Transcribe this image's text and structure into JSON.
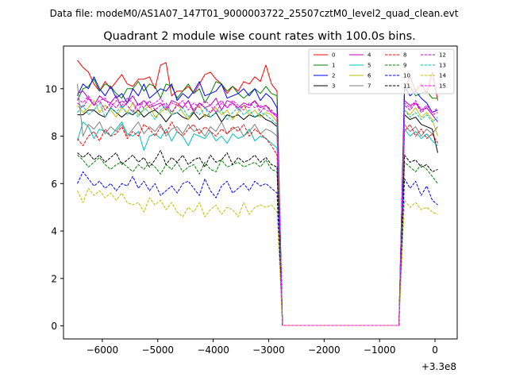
{
  "chart_data": {
    "type": "line",
    "suptitle": "Data file: modeM0/AS1A07_147T01_9000003722_25507cztM0_level2_quad_clean.evt",
    "title": "Quadrant 2 module wise count rates with 100.0s bins.",
    "xlabel": "",
    "ylabel": "",
    "x_offset_label": "+3.3e8",
    "xlim": [
      -6700,
      400
    ],
    "ylim": [
      -0.55,
      11.8
    ],
    "xticks": [
      -6000,
      -5000,
      -4000,
      -3000,
      -2000,
      -1000,
      0
    ],
    "xtick_labels": [
      "−6000",
      "−5000",
      "−4000",
      "−3000",
      "−2000",
      "−1000",
      "0"
    ],
    "yticks": [
      0,
      2,
      4,
      6,
      8,
      10
    ],
    "ytick_labels": [
      "0",
      "2",
      "4",
      "6",
      "8",
      "10"
    ],
    "legend_position": "upper right",
    "legend_ncol": 4,
    "x": [
      -6450,
      -6350,
      -6250,
      -6150,
      -6050,
      -5950,
      -5850,
      -5750,
      -5650,
      -5550,
      -5450,
      -5350,
      -5250,
      -5150,
      -5050,
      -4950,
      -4850,
      -4750,
      -4650,
      -4550,
      -4450,
      -4350,
      -4250,
      -4150,
      -4050,
      -3950,
      -3850,
      -3750,
      -3650,
      -3550,
      -3450,
      -3350,
      -3250,
      -3150,
      -3050,
      -2950,
      -2850,
      -2750,
      -2650,
      -2550,
      -2450,
      -2350,
      -2250,
      -2150,
      -2050,
      -1950,
      -1850,
      -1750,
      -1650,
      -1550,
      -1450,
      -1350,
      -1250,
      -1150,
      -1050,
      -950,
      -850,
      -750,
      -650,
      -550,
      -450,
      -350,
      -250,
      -150,
      -50,
      50
    ],
    "series": [
      {
        "name": "0",
        "color": "#ff0000",
        "dash": "solid",
        "values": [
          11.2,
          10.9,
          10.7,
          10.2,
          9.9,
          10.3,
          10.0,
          10.3,
          10.6,
          10.2,
          10.1,
          10.4,
          10.4,
          10.5,
          10.0,
          11.0,
          11.1,
          9.7,
          9.9,
          9.9,
          10.1,
          9.8,
          10.2,
          10.6,
          10.7,
          10.4,
          10.2,
          9.8,
          10.1,
          9.9,
          10.3,
          10.2,
          10.5,
          10.3,
          11.0,
          10.2,
          9.9,
          0.02,
          0.02,
          0.02,
          0.02,
          0.02,
          0.02,
          0.02,
          0.02,
          0.02,
          0.02,
          0.02,
          0.02,
          0.02,
          0.02,
          0.02,
          0.02,
          0.02,
          0.02,
          0.02,
          0.02,
          0.02,
          0.02,
          10.0,
          10.5,
          9.9,
          10.2,
          9.8,
          10.7,
          9.5
        ]
      },
      {
        "name": "1",
        "color": "#008000",
        "dash": "solid",
        "values": [
          9.5,
          10.0,
          10.1,
          10.4,
          9.9,
          10.2,
          10.1,
          9.8,
          9.6,
          10.0,
          10.0,
          10.3,
          9.9,
          10.2,
          10.1,
          9.6,
          10.2,
          10.1,
          9.6,
          9.9,
          10.2,
          9.8,
          10.0,
          9.4,
          9.8,
          10.3,
          10.2,
          9.9,
          10.1,
          9.8,
          9.6,
          9.8,
          10.0,
          9.8,
          10.1,
          9.8,
          9.7,
          0.02,
          0.02,
          0.02,
          0.02,
          0.02,
          0.02,
          0.02,
          0.02,
          0.02,
          0.02,
          0.02,
          0.02,
          0.02,
          0.02,
          0.02,
          0.02,
          0.02,
          0.02,
          0.02,
          0.02,
          0.02,
          0.02,
          9.9,
          10.1,
          9.7,
          9.8,
          9.9,
          9.6,
          9.6
        ]
      },
      {
        "name": "2",
        "color": "#0000ff",
        "dash": "solid",
        "values": [
          9.7,
          10.2,
          10.0,
          10.5,
          10.0,
          9.7,
          10.1,
          9.6,
          9.8,
          9.4,
          10.0,
          9.7,
          10.2,
          9.6,
          9.8,
          10.0,
          9.9,
          10.2,
          9.5,
          9.8,
          9.6,
          9.9,
          10.3,
          9.7,
          9.8,
          9.9,
          10.2,
          9.6,
          9.7,
          9.8,
          10.0,
          9.7,
          10.0,
          9.5,
          9.8,
          9.6,
          9.2,
          0.02,
          0.02,
          0.02,
          0.02,
          0.02,
          0.02,
          0.02,
          0.02,
          0.02,
          0.02,
          0.02,
          0.02,
          0.02,
          0.02,
          0.02,
          0.02,
          0.02,
          0.02,
          0.02,
          0.02,
          0.02,
          0.02,
          10.1,
          9.7,
          9.9,
          9.6,
          9.4,
          9.0,
          9.1
        ]
      },
      {
        "name": "3",
        "color": "#000000",
        "dash": "solid",
        "values": [
          8.9,
          8.9,
          9.1,
          9.1,
          8.9,
          8.8,
          9.2,
          9.0,
          8.8,
          9.0,
          8.9,
          9.1,
          8.8,
          9.0,
          9.1,
          8.9,
          8.6,
          8.9,
          9.0,
          8.8,
          8.7,
          9.0,
          8.7,
          8.9,
          8.8,
          9.0,
          8.6,
          8.9,
          8.8,
          8.9,
          8.7,
          8.9,
          8.8,
          8.9,
          8.7,
          8.6,
          8.4,
          0.02,
          0.02,
          0.02,
          0.02,
          0.02,
          0.02,
          0.02,
          0.02,
          0.02,
          0.02,
          0.02,
          0.02,
          0.02,
          0.02,
          0.02,
          0.02,
          0.02,
          0.02,
          0.02,
          0.02,
          0.02,
          0.02,
          8.9,
          8.7,
          8.8,
          8.5,
          8.4,
          8.3,
          7.3
        ]
      },
      {
        "name": "4",
        "color": "#bf00bf",
        "dash": "solid",
        "values": [
          9.8,
          9.9,
          9.6,
          9.3,
          9.7,
          9.5,
          9.4,
          9.7,
          9.2,
          9.4,
          9.7,
          9.3,
          9.5,
          9.2,
          9.3,
          9.4,
          9.1,
          9.5,
          9.4,
          9.2,
          9.5,
          9.0,
          9.4,
          9.2,
          9.3,
          9.6,
          9.1,
          9.5,
          9.4,
          9.2,
          9.4,
          9.3,
          9.5,
          9.2,
          9.3,
          9.0,
          8.9,
          0.02,
          0.02,
          0.02,
          0.02,
          0.02,
          0.02,
          0.02,
          0.02,
          0.02,
          0.02,
          0.02,
          0.02,
          0.02,
          0.02,
          0.02,
          0.02,
          0.02,
          0.02,
          0.02,
          0.02,
          0.02,
          0.02,
          9.5,
          9.3,
          9.4,
          9.1,
          9.2,
          8.9,
          8.6
        ]
      },
      {
        "name": "5",
        "color": "#00bfbf",
        "dash": "solid",
        "values": [
          7.8,
          8.6,
          8.4,
          7.9,
          8.3,
          8.2,
          8.0,
          8.3,
          8.6,
          8.1,
          8.0,
          8.2,
          7.4,
          8.0,
          8.1,
          7.9,
          8.3,
          7.8,
          8.2,
          8.0,
          7.6,
          8.1,
          8.0,
          7.9,
          8.2,
          7.8,
          8.0,
          7.7,
          8.1,
          7.9,
          8.0,
          8.3,
          7.8,
          8.0,
          7.9,
          7.7,
          7.5,
          0.02,
          0.02,
          0.02,
          0.02,
          0.02,
          0.02,
          0.02,
          0.02,
          0.02,
          0.02,
          0.02,
          0.02,
          0.02,
          0.02,
          0.02,
          0.02,
          0.02,
          0.02,
          0.02,
          0.02,
          0.02,
          0.02,
          8.3,
          8.0,
          8.2,
          7.9,
          8.1,
          7.8,
          7.6
        ]
      },
      {
        "name": "6",
        "color": "#bfbf00",
        "dash": "solid",
        "values": [
          9.3,
          9.0,
          9.2,
          9.5,
          9.0,
          9.3,
          9.1,
          8.8,
          9.2,
          9.0,
          9.4,
          8.9,
          9.1,
          9.3,
          8.8,
          9.0,
          9.2,
          8.9,
          9.4,
          9.0,
          8.7,
          9.1,
          9.3,
          8.8,
          9.0,
          9.2,
          8.9,
          9.1,
          8.7,
          9.0,
          9.3,
          8.9,
          9.1,
          8.8,
          9.0,
          8.9,
          8.6,
          0.02,
          0.02,
          0.02,
          0.02,
          0.02,
          0.02,
          0.02,
          0.02,
          0.02,
          0.02,
          0.02,
          0.02,
          0.02,
          0.02,
          0.02,
          0.02,
          0.02,
          0.02,
          0.02,
          0.02,
          0.02,
          0.02,
          9.1,
          8.9,
          9.2,
          8.8,
          9.0,
          8.7,
          8.0
        ]
      },
      {
        "name": "7",
        "color": "#808080",
        "dash": "solid",
        "values": [
          10.2,
          8.0,
          8.5,
          8.3,
          8.6,
          8.1,
          8.4,
          8.2,
          8.5,
          8.0,
          8.3,
          8.6,
          8.1,
          8.4,
          8.2,
          8.5,
          8.0,
          8.3,
          8.4,
          8.1,
          8.5,
          8.2,
          8.3,
          8.0,
          8.4,
          8.2,
          8.6,
          8.1,
          8.3,
          8.4,
          8.0,
          8.2,
          8.5,
          8.1,
          8.3,
          8.2,
          8.0,
          0.02,
          0.02,
          0.02,
          0.02,
          0.02,
          0.02,
          0.02,
          0.02,
          0.02,
          0.02,
          0.02,
          0.02,
          0.02,
          0.02,
          0.02,
          0.02,
          0.02,
          0.02,
          0.02,
          0.02,
          0.02,
          0.02,
          8.5,
          8.2,
          8.4,
          8.0,
          8.3,
          8.1,
          8.4
        ]
      },
      {
        "name": "8",
        "color": "#ff0000",
        "dash": "dashed",
        "values": [
          7.9,
          7.6,
          8.0,
          8.2,
          7.8,
          8.3,
          8.0,
          8.1,
          8.4,
          7.9,
          8.2,
          8.0,
          8.5,
          8.3,
          8.0,
          8.4,
          8.1,
          8.6,
          8.2,
          8.0,
          8.3,
          8.5,
          8.1,
          8.4,
          8.2,
          8.0,
          8.3,
          8.1,
          8.4,
          8.2,
          8.5,
          8.0,
          8.3,
          8.1,
          7.9,
          7.6,
          7.2,
          0.02,
          0.02,
          0.02,
          0.02,
          0.02,
          0.02,
          0.02,
          0.02,
          0.02,
          0.02,
          0.02,
          0.02,
          0.02,
          0.02,
          0.02,
          0.02,
          0.02,
          0.02,
          0.02,
          0.02,
          0.02,
          0.02,
          8.2,
          8.5,
          8.0,
          8.3,
          7.9,
          8.1,
          7.7
        ]
      },
      {
        "name": "9",
        "color": "#008000",
        "dash": "dashed",
        "values": [
          7.2,
          7.0,
          6.7,
          6.9,
          7.1,
          6.8,
          6.6,
          6.8,
          6.9,
          6.7,
          6.5,
          6.8,
          6.6,
          6.9,
          6.7,
          6.4,
          6.8,
          6.6,
          6.9,
          6.5,
          6.7,
          6.8,
          6.4,
          6.9,
          6.6,
          6.5,
          7.0,
          6.7,
          6.8,
          6.9,
          6.7,
          6.8,
          6.9,
          6.7,
          7.0,
          6.6,
          6.5,
          0.02,
          0.02,
          0.02,
          0.02,
          0.02,
          0.02,
          0.02,
          0.02,
          0.02,
          0.02,
          0.02,
          0.02,
          0.02,
          0.02,
          0.02,
          0.02,
          0.02,
          0.02,
          0.02,
          0.02,
          0.02,
          0.02,
          6.9,
          6.7,
          6.5,
          6.8,
          6.6,
          6.3,
          6.0
        ]
      },
      {
        "name": "10",
        "color": "#0000ff",
        "dash": "dashed",
        "values": [
          6.0,
          6.5,
          6.2,
          5.9,
          6.1,
          5.8,
          6.0,
          5.7,
          6.0,
          5.9,
          6.3,
          5.8,
          6.1,
          5.7,
          6.0,
          5.5,
          5.7,
          5.9,
          5.6,
          6.0,
          6.1,
          5.8,
          5.5,
          6.2,
          5.7,
          5.4,
          5.9,
          6.1,
          5.6,
          5.8,
          6.0,
          5.7,
          6.1,
          5.9,
          6.0,
          5.8,
          5.6,
          0.02,
          0.02,
          0.02,
          0.02,
          0.02,
          0.02,
          0.02,
          0.02,
          0.02,
          0.02,
          0.02,
          0.02,
          0.02,
          0.02,
          0.02,
          0.02,
          0.02,
          0.02,
          0.02,
          0.02,
          0.02,
          0.02,
          6.2,
          5.8,
          6.1,
          5.5,
          5.9,
          5.3,
          5.1
        ]
      },
      {
        "name": "11",
        "color": "#000000",
        "dash": "dashed",
        "values": [
          7.3,
          7.1,
          7.3,
          7.0,
          7.2,
          6.9,
          7.1,
          7.3,
          6.8,
          7.0,
          7.2,
          6.9,
          7.1,
          6.7,
          7.0,
          7.4,
          6.8,
          7.1,
          6.9,
          7.2,
          6.8,
          7.0,
          7.1,
          6.7,
          7.2,
          6.9,
          7.0,
          7.3,
          6.8,
          7.1,
          6.9,
          7.0,
          7.2,
          6.9,
          7.1,
          6.8,
          6.7,
          0.02,
          0.02,
          0.02,
          0.02,
          0.02,
          0.02,
          0.02,
          0.02,
          0.02,
          0.02,
          0.02,
          0.02,
          0.02,
          0.02,
          0.02,
          0.02,
          0.02,
          0.02,
          0.02,
          0.02,
          0.02,
          0.02,
          7.2,
          6.9,
          7.0,
          6.7,
          6.8,
          6.5,
          6.6
        ]
      },
      {
        "name": "12",
        "color": "#bf00bf",
        "dash": "dashed",
        "values": [
          9.4,
          9.2,
          9.6,
          9.3,
          9.5,
          9.1,
          9.4,
          9.2,
          9.5,
          9.3,
          9.0,
          9.4,
          9.2,
          9.5,
          9.1,
          9.3,
          9.4,
          9.0,
          9.3,
          9.2,
          9.5,
          9.1,
          9.4,
          9.2,
          9.0,
          9.3,
          9.5,
          9.2,
          9.4,
          9.1,
          9.3,
          9.2,
          9.5,
          9.0,
          9.3,
          9.1,
          8.8,
          0.02,
          0.02,
          0.02,
          0.02,
          0.02,
          0.02,
          0.02,
          0.02,
          0.02,
          0.02,
          0.02,
          0.02,
          0.02,
          0.02,
          0.02,
          0.02,
          0.02,
          0.02,
          0.02,
          0.02,
          0.02,
          0.02,
          9.3,
          9.1,
          9.4,
          9.0,
          9.2,
          8.9,
          9.0
        ]
      },
      {
        "name": "13",
        "color": "#00bfbf",
        "dash": "dashed",
        "values": [
          9.0,
          9.3,
          8.9,
          9.1,
          9.4,
          8.8,
          9.2,
          9.0,
          9.3,
          8.9,
          9.1,
          8.8,
          9.2,
          9.0,
          8.7,
          9.1,
          9.3,
          8.9,
          9.0,
          9.2,
          8.8,
          9.1,
          8.9,
          9.2,
          8.8,
          9.0,
          9.1,
          8.7,
          9.0,
          9.2,
          8.9,
          9.1,
          8.8,
          9.0,
          8.9,
          8.7,
          8.5,
          0.02,
          0.02,
          0.02,
          0.02,
          0.02,
          0.02,
          0.02,
          0.02,
          0.02,
          0.02,
          0.02,
          0.02,
          0.02,
          0.02,
          0.02,
          0.02,
          0.02,
          0.02,
          0.02,
          0.02,
          0.02,
          0.02,
          9.1,
          8.8,
          9.0,
          8.7,
          8.9,
          8.6,
          8.8
        ]
      },
      {
        "name": "14",
        "color": "#bfbf00",
        "dash": "dashed",
        "values": [
          5.7,
          5.2,
          5.8,
          5.5,
          5.7,
          5.4,
          5.6,
          5.3,
          5.6,
          5.2,
          5.1,
          5.2,
          4.8,
          5.4,
          5.1,
          5.3,
          4.9,
          5.2,
          4.8,
          4.6,
          5.0,
          4.8,
          5.2,
          4.6,
          4.9,
          5.1,
          4.7,
          5.0,
          4.9,
          4.6,
          5.2,
          4.7,
          5.0,
          5.1,
          5.0,
          5.1,
          4.8,
          0.02,
          0.02,
          0.02,
          0.02,
          0.02,
          0.02,
          0.02,
          0.02,
          0.02,
          0.02,
          0.02,
          0.02,
          0.02,
          0.02,
          0.02,
          0.02,
          0.02,
          0.02,
          0.02,
          0.02,
          0.02,
          0.02,
          5.3,
          5.0,
          5.2,
          4.9,
          5.0,
          4.8,
          4.7
        ]
      },
      {
        "name": "15",
        "color": "#ff00ff",
        "dash": "dashed",
        "values": [
          9.6,
          9.4,
          9.7,
          9.3,
          9.5,
          9.6,
          9.2,
          9.5,
          9.3,
          9.6,
          9.4,
          9.1,
          9.5,
          9.3,
          9.4,
          9.6,
          9.2,
          9.4,
          9.3,
          9.5,
          9.1,
          9.4,
          9.2,
          9.5,
          9.3,
          9.0,
          9.4,
          9.2,
          9.5,
          9.3,
          9.1,
          9.4,
          9.2,
          9.3,
          9.1,
          9.0,
          8.8,
          0.02,
          0.02,
          0.02,
          0.02,
          0.02,
          0.02,
          0.02,
          0.02,
          0.02,
          0.02,
          0.02,
          0.02,
          0.02,
          0.02,
          0.02,
          0.02,
          0.02,
          0.02,
          0.02,
          0.02,
          0.02,
          0.02,
          9.4,
          9.2,
          9.5,
          9.1,
          9.3,
          9.0,
          9.2
        ]
      }
    ]
  }
}
